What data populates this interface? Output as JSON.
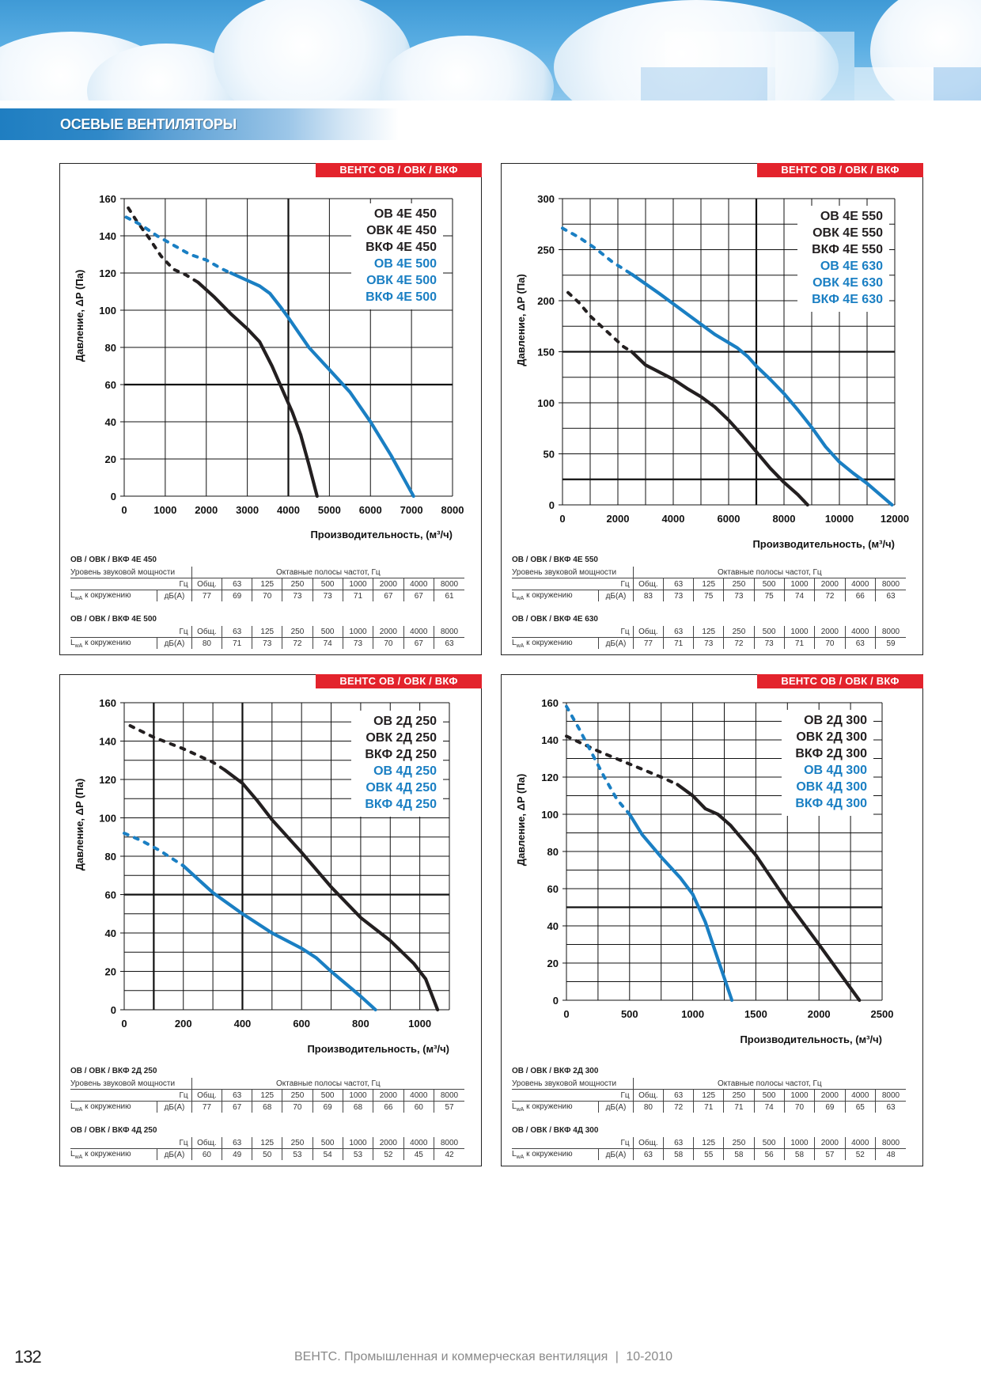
{
  "section_title": "ОСЕВЫЕ ВЕНТИЛЯТОРЫ",
  "footer": {
    "page_number": "132",
    "publication": "ВЕНТС. Промышленная и коммерческая вентиляция",
    "separator": "|",
    "edition": "10-2010"
  },
  "colors": {
    "badge_red": "#e3232c",
    "series_black": "#231f20",
    "series_blue": "#1a7fc3",
    "section_blue": "#1f7ec1"
  },
  "panels": [
    {
      "badge": "ВЕНТС ОВ / ОВК / ВКФ",
      "tables": [
        {
          "title": "ОВ / ОВК / ВКФ 4Е 450",
          "show_header": true,
          "header_left": "Уровень звуковой мощности",
          "header_right": "Октавные полосы частот, Гц",
          "hz_label": "Гц",
          "bands": [
            "Общ.",
            "63",
            "125",
            "250",
            "500",
            "1000",
            "2000",
            "4000",
            "8000"
          ],
          "row_label": "LwA к окружению",
          "unit": "дБ(А)",
          "values": [
            "77",
            "69",
            "70",
            "73",
            "73",
            "71",
            "67",
            "67",
            "61"
          ]
        },
        {
          "title": "ОВ / ОВК / ВКФ 4Е 500",
          "show_header": false,
          "hz_label": "Гц",
          "bands": [
            "Общ.",
            "63",
            "125",
            "250",
            "500",
            "1000",
            "2000",
            "4000",
            "8000"
          ],
          "row_label": "LwA к окружению",
          "unit": "дБ(А)",
          "values": [
            "80",
            "71",
            "73",
            "72",
            "74",
            "73",
            "70",
            "67",
            "63"
          ]
        }
      ]
    },
    {
      "badge": "ВЕНТС ОВ / ОВК / ВКФ",
      "tables": [
        {
          "title": "ОВ / ОВК / ВКФ 4Е 550",
          "show_header": true,
          "header_left": "Уровень звуковой мощности",
          "header_right": "Октавные полосы частот, Гц",
          "hz_label": "Гц",
          "bands": [
            "Общ.",
            "63",
            "125",
            "250",
            "500",
            "1000",
            "2000",
            "4000",
            "8000"
          ],
          "row_label": "LwA к окружению",
          "unit": "дБ(А)",
          "values": [
            "83",
            "73",
            "75",
            "73",
            "75",
            "74",
            "72",
            "66",
            "63"
          ]
        },
        {
          "title": "ОВ / ОВК / ВКФ 4Е 630",
          "show_header": false,
          "hz_label": "Гц",
          "bands": [
            "Общ.",
            "63",
            "125",
            "250",
            "500",
            "1000",
            "2000",
            "4000",
            "8000"
          ],
          "row_label": "LwA к окружению",
          "unit": "дБ(А)",
          "values": [
            "77",
            "71",
            "73",
            "72",
            "73",
            "71",
            "70",
            "63",
            "59"
          ]
        }
      ]
    },
    {
      "badge": "ВЕНТС ОВ / ОВК / ВКФ",
      "tables": [
        {
          "title": "ОВ / ОВК / ВКФ 2Д 250",
          "show_header": true,
          "header_left": "Уровень звуковой мощности",
          "header_right": "Октавные полосы частот, Гц",
          "hz_label": "Гц",
          "bands": [
            "Общ.",
            "63",
            "125",
            "250",
            "500",
            "1000",
            "2000",
            "4000",
            "8000"
          ],
          "row_label": "LwA к окружению",
          "unit": "дБ(А)",
          "values": [
            "77",
            "67",
            "68",
            "70",
            "69",
            "68",
            "66",
            "60",
            "57"
          ]
        },
        {
          "title": "ОВ / ОВК / ВКФ 4Д 250",
          "show_header": false,
          "hz_label": "Гц",
          "bands": [
            "Общ.",
            "63",
            "125",
            "250",
            "500",
            "1000",
            "2000",
            "4000",
            "8000"
          ],
          "row_label": "LwA к окружению",
          "unit": "дБ(А)",
          "values": [
            "60",
            "49",
            "50",
            "53",
            "54",
            "53",
            "52",
            "45",
            "42"
          ]
        }
      ]
    },
    {
      "badge": "ВЕНТС ОВ / ОВК / ВКФ",
      "tables": [
        {
          "title": "ОВ / ОВК / ВКФ 2Д 300",
          "show_header": true,
          "header_left": "Уровень звуковой мощности",
          "header_right": "Октавные полосы частот, Гц",
          "hz_label": "Гц",
          "bands": [
            "Общ.",
            "63",
            "125",
            "250",
            "500",
            "1000",
            "2000",
            "4000",
            "8000"
          ],
          "row_label": "LwA к окружению",
          "unit": "дБ(А)",
          "values": [
            "80",
            "72",
            "71",
            "71",
            "74",
            "70",
            "69",
            "65",
            "63"
          ]
        },
        {
          "title": "ОВ / ОВК / ВКФ 4Д 300",
          "show_header": false,
          "hz_label": "Гц",
          "bands": [
            "Общ.",
            "63",
            "125",
            "250",
            "500",
            "1000",
            "2000",
            "4000",
            "8000"
          ],
          "row_label": "LwA к окружению",
          "unit": "дБ(А)",
          "values": [
            "63",
            "58",
            "55",
            "58",
            "56",
            "58",
            "57",
            "52",
            "48"
          ]
        }
      ]
    }
  ],
  "chart_data": [
    {
      "type": "line",
      "title": "",
      "xlabel": "Производительность, (м³/ч)",
      "ylabel": "Давление, ΔP (Па)",
      "xlim": [
        0,
        8000
      ],
      "ylim": [
        0,
        160
      ],
      "xticks": [
        0,
        1000,
        2000,
        3000,
        4000,
        5000,
        6000,
        7000,
        8000
      ],
      "yticks": [
        0,
        20,
        40,
        60,
        80,
        100,
        120,
        140,
        160
      ],
      "x_grid_step": 1000,
      "y_grid_step": 20,
      "emphasized_x": [
        4000
      ],
      "emphasized_y": [
        60
      ],
      "grid": true,
      "legend_position": "top-right",
      "legend": [
        {
          "label": "ОВ 4Е 450",
          "color": "#231f20"
        },
        {
          "label": "ОВК 4Е 450",
          "color": "#231f20"
        },
        {
          "label": "ВКФ 4Е 450",
          "color": "#231f20"
        },
        {
          "label": "ОВ 4Е 500",
          "color": "#1a7fc3"
        },
        {
          "label": "ОВК 4Е 500",
          "color": "#1a7fc3"
        },
        {
          "label": "ВКФ 4Е 500",
          "color": "#1a7fc3"
        }
      ],
      "series": [
        {
          "name": "ОВ / ОВК / ВКФ 4Е 450",
          "color": "#231f20",
          "dashed": {
            "x": [
              100,
              300,
              600,
              900,
              1200,
              1500,
              1800
            ],
            "y": [
              155,
              148,
              139,
              129,
              122,
              119,
              115
            ]
          },
          "solid": {
            "x": [
              1800,
              2200,
              2600,
              3000,
              3300,
              3600,
              3900,
              4100,
              4300,
              4500,
              4700
            ],
            "y": [
              115,
              107,
              98,
              90,
              83,
              70,
              55,
              45,
              33,
              17,
              0
            ]
          }
        },
        {
          "name": "ОВ / ОВК / ВКФ 4Е 500",
          "color": "#1a7fc3",
          "dashed": {
            "x": [
              50,
              400,
              800,
              1200,
              1600,
              2000,
              2400,
              2600
            ],
            "y": [
              150,
              146,
              140,
              135,
              130,
              127,
              122,
              120
            ]
          },
          "solid": {
            "x": [
              2600,
              3000,
              3300,
              3550,
              3800,
              4000,
              4500,
              5000,
              5500,
              6000,
              6500,
              7050
            ],
            "y": [
              120,
              116,
              113,
              109,
              102,
              96,
              80,
              68,
              56,
              40,
              22,
              0
            ]
          }
        }
      ]
    },
    {
      "type": "line",
      "title": "",
      "xlabel": "Производительность, (м³/ч)",
      "ylabel": "Давление, ΔP (Па)",
      "xlim": [
        0,
        12000
      ],
      "ylim": [
        0,
        300
      ],
      "xticks": [
        0,
        2000,
        4000,
        6000,
        8000,
        10000,
        12000
      ],
      "yticks": [
        0,
        50,
        100,
        150,
        200,
        250,
        300
      ],
      "x_grid_step": 1000,
      "y_grid_step": 25,
      "emphasized_x": [
        7000
      ],
      "emphasized_y": [
        25,
        150
      ],
      "grid": true,
      "legend_position": "top-right",
      "legend": [
        {
          "label": "ОВ 4Е 550",
          "color": "#231f20"
        },
        {
          "label": "ОВК 4Е 550",
          "color": "#231f20"
        },
        {
          "label": "ВКФ 4Е 550",
          "color": "#231f20"
        },
        {
          "label": "ОВ 4Е 630",
          "color": "#1a7fc3"
        },
        {
          "label": "ОВК 4Е 630",
          "color": "#1a7fc3"
        },
        {
          "label": "ВКФ 4Е 630",
          "color": "#1a7fc3"
        }
      ],
      "series": [
        {
          "name": "ОВ / ОВК / ВКФ 4Е 550",
          "color": "#231f20",
          "dashed": {
            "x": [
              200,
              600,
              1000,
              1400,
              1800,
              2200,
              2500
            ],
            "y": [
              208,
              198,
              185,
              175,
              165,
              155,
              150
            ]
          },
          "solid": {
            "x": [
              2500,
              3000,
              3500,
              4000,
              4500,
              5000,
              5500,
              6000,
              6500,
              7000,
              7500,
              8000,
              8500,
              8850
            ],
            "y": [
              150,
              137,
              130,
              123,
              114,
              106,
              96,
              83,
              68,
              52,
              36,
              22,
              10,
              0
            ]
          }
        },
        {
          "name": "ОВ / ОВК / ВКФ 4Е 630",
          "color": "#1a7fc3",
          "dashed": {
            "x": [
              0,
              600,
              1200,
              1800,
              2500
            ],
            "y": [
              271,
              262,
              251,
              238,
              226
            ]
          },
          "solid": {
            "x": [
              2500,
              3500,
              4500,
              5500,
              6300,
              6700,
              7000,
              7500,
              8000,
              8500,
              9000,
              9500,
              10000,
              10500,
              11000,
              11900
            ],
            "y": [
              226,
              207,
              187,
              167,
              154,
              145,
              136,
              123,
              109,
              93,
              76,
              57,
              42,
              31,
              21,
              0
            ]
          }
        }
      ]
    },
    {
      "type": "line",
      "title": "",
      "xlabel": "Производительность, (м³/ч)",
      "ylabel": "Давление, ΔP (Па)",
      "xlim": [
        0,
        1100
      ],
      "ylim": [
        0,
        160
      ],
      "xticks": [
        0,
        200,
        400,
        600,
        800,
        1000
      ],
      "yticks": [
        0,
        20,
        40,
        60,
        80,
        100,
        120,
        140,
        160
      ],
      "x_grid_step": 100,
      "y_grid_step": 10,
      "emphasized_x": [
        100,
        400
      ],
      "emphasized_y": [
        60
      ],
      "grid": true,
      "legend_position": "top-right",
      "legend": [
        {
          "label": "ОВ 2Д 250",
          "color": "#231f20"
        },
        {
          "label": "ОВК 2Д 250",
          "color": "#231f20"
        },
        {
          "label": "ВКФ 2Д 250",
          "color": "#231f20"
        },
        {
          "label": "ОВ 4Д 250",
          "color": "#1a7fc3"
        },
        {
          "label": "ОВК 4Д 250",
          "color": "#1a7fc3"
        },
        {
          "label": "ВКФ 4Д 250",
          "color": "#1a7fc3"
        }
      ],
      "series": [
        {
          "name": "ОВ / ОВК / ВКФ 2Д 250",
          "color": "#231f20",
          "dashed": {
            "x": [
              20,
              100,
              200,
              300,
              340
            ],
            "y": [
              148,
              142,
              136,
              129,
              125
            ]
          },
          "solid": {
            "x": [
              340,
              400,
              450,
              500,
              600,
              700,
              800,
              900,
              980,
              1020,
              1040,
              1060
            ],
            "y": [
              125,
              118,
              109,
              99,
              82,
              64,
              48,
              36,
              24,
              16,
              8,
              0
            ]
          }
        },
        {
          "name": "ОВ / ОВК / ВКФ 4Д 250",
          "color": "#1a7fc3",
          "dashed": {
            "x": [
              0,
              60,
              120,
              200
            ],
            "y": [
              92,
              88,
              83,
              75
            ]
          },
          "solid": {
            "x": [
              200,
              300,
              400,
              500,
              600,
              650,
              700,
              800,
              850
            ],
            "y": [
              75,
              61,
              50,
              40,
              32,
              27,
              20,
              7,
              0
            ]
          }
        }
      ]
    },
    {
      "type": "line",
      "title": "",
      "xlabel": "Производительность, (м³/ч)",
      "ylabel": "Давление, ΔP (Па)",
      "xlim": [
        0,
        2500
      ],
      "ylim": [
        0,
        160
      ],
      "xticks": [
        0,
        500,
        1000,
        1500,
        2000,
        2500
      ],
      "yticks": [
        0,
        20,
        40,
        60,
        80,
        100,
        120,
        140,
        160
      ],
      "x_grid_step": 250,
      "y_grid_step": 10,
      "emphasized_x": [],
      "emphasized_y": [
        50
      ],
      "grid": true,
      "legend_position": "top-right",
      "legend": [
        {
          "label": "ОВ 2Д 300",
          "color": "#231f20"
        },
        {
          "label": "ОВК 2Д 300",
          "color": "#231f20"
        },
        {
          "label": "ВКФ 2Д 300",
          "color": "#231f20"
        },
        {
          "label": "ОВ 4Д 300",
          "color": "#1a7fc3"
        },
        {
          "label": "ОВК 4Д 300",
          "color": "#1a7fc3"
        },
        {
          "label": "ВКФ 4Д 300",
          "color": "#1a7fc3"
        }
      ],
      "series": [
        {
          "name": "ОВ / ОВК / ВКФ 2Д 300",
          "color": "#231f20",
          "dashed": {
            "x": [
              0,
              250,
              500,
              750,
              880
            ],
            "y": [
              142,
              134,
              127,
              120,
              116
            ]
          },
          "solid": {
            "x": [
              880,
              1000,
              1100,
              1200,
              1300,
              1500,
              1750,
              2000,
              2320
            ],
            "y": [
              116,
              110,
              103,
              100,
              94,
              78,
              53,
              30,
              0
            ]
          }
        },
        {
          "name": "ОВ / ОВК / ВКФ 4Д 300",
          "color": "#1a7fc3",
          "dashed": {
            "x": [
              0,
              100,
              200,
              300,
              400,
              500
            ],
            "y": [
              158,
              146,
              133,
              120,
              108,
              100
            ]
          },
          "solid": {
            "x": [
              500,
              600,
              750,
              900,
              1000,
              1100,
              1200,
              1310
            ],
            "y": [
              100,
              89,
              77,
              66,
              57,
              42,
              22,
              0
            ]
          }
        }
      ]
    }
  ]
}
